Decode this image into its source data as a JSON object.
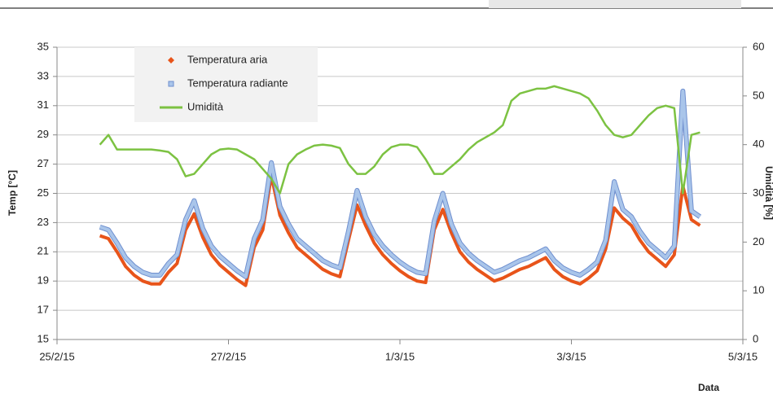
{
  "chart_data": {
    "type": "line",
    "x_label": "Data",
    "y_label": "Temp [°C]",
    "y2_label": "Umidità [%]",
    "x": [
      42060.5,
      42060.6,
      42060.7,
      42060.8,
      42060.9,
      42061.0,
      42061.1,
      42061.2,
      42061.3,
      42061.4,
      42061.5,
      42061.6,
      42061.7,
      42061.8,
      42061.9,
      42062.0,
      42062.1,
      42062.2,
      42062.3,
      42062.4,
      42062.5,
      42062.6,
      42062.7,
      42062.8,
      42062.9,
      42063.0,
      42063.1,
      42063.2,
      42063.3,
      42063.4,
      42063.5,
      42063.6,
      42063.7,
      42063.8,
      42063.9,
      42064.0,
      42064.1,
      42064.2,
      42064.3,
      42064.4,
      42064.5,
      42064.6,
      42064.7,
      42064.8,
      42064.9,
      42065.0,
      42065.1,
      42065.2,
      42065.3,
      42065.4,
      42065.5,
      42065.6,
      42065.7,
      42065.8,
      42065.9,
      42066.0,
      42066.1,
      42066.2,
      42066.3,
      42066.4,
      42066.5,
      42066.6,
      42066.7,
      42066.8,
      42066.9,
      42067.0,
      42067.1,
      42067.2,
      42067.3,
      42067.4,
      42067.5
    ],
    "series": [
      {
        "name": "Temperatura aria",
        "color": "#e8541a",
        "marker": "diamond",
        "values": [
          22.1,
          21.9,
          21.0,
          20.0,
          19.4,
          19.0,
          18.8,
          18.8,
          19.6,
          20.2,
          22.5,
          23.6,
          22.0,
          20.8,
          20.1,
          19.6,
          19.1,
          18.7,
          21.3,
          22.5,
          26.2,
          23.5,
          22.3,
          21.3,
          20.8,
          20.3,
          19.8,
          19.5,
          19.3,
          21.8,
          24.2,
          22.8,
          21.6,
          20.8,
          20.2,
          19.7,
          19.3,
          19.0,
          18.9,
          22.5,
          23.9,
          22.3,
          21.0,
          20.3,
          19.8,
          19.4,
          19.0,
          19.2,
          19.5,
          19.8,
          20.0,
          20.3,
          20.6,
          19.8,
          19.3,
          19.0,
          18.8,
          19.2,
          19.7,
          21.2,
          24.0,
          23.3,
          22.8,
          21.8,
          21.0,
          20.5,
          20.0,
          20.8,
          25.5,
          23.2,
          22.8
        ]
      },
      {
        "name": "Temperatura radiante",
        "color": "#a9c5ea",
        "marker": "square",
        "values": [
          22.7,
          22.5,
          21.6,
          20.6,
          20.0,
          19.6,
          19.4,
          19.4,
          20.2,
          20.8,
          23.2,
          24.5,
          22.6,
          21.4,
          20.7,
          20.2,
          19.7,
          19.3,
          21.9,
          23.2,
          27.1,
          24.1,
          22.9,
          21.9,
          21.4,
          20.9,
          20.4,
          20.1,
          19.9,
          22.4,
          25.2,
          23.4,
          22.2,
          21.4,
          20.8,
          20.3,
          19.9,
          19.6,
          19.5,
          23.1,
          25.0,
          22.9,
          21.6,
          20.9,
          20.4,
          20.0,
          19.6,
          19.8,
          20.1,
          20.4,
          20.6,
          20.9,
          21.2,
          20.4,
          19.9,
          19.6,
          19.4,
          19.8,
          20.3,
          21.8,
          25.8,
          23.9,
          23.4,
          22.4,
          21.6,
          21.1,
          20.6,
          21.4,
          32.0,
          23.8,
          23.4
        ]
      },
      {
        "name": "Umidità",
        "color": "#7cc242",
        "axis": "y2",
        "values": [
          40,
          42,
          39,
          39,
          39,
          39,
          39,
          38.8,
          38.5,
          37,
          33.5,
          34,
          36,
          38,
          39,
          39.2,
          39,
          38,
          37,
          35,
          33,
          30,
          36,
          38,
          39,
          39.8,
          40,
          39.8,
          39.3,
          36,
          34,
          34,
          35.5,
          38,
          39.5,
          40,
          40,
          39.5,
          37,
          34,
          34,
          35.5,
          37,
          39,
          40.5,
          41.5,
          42.5,
          44,
          49,
          50.5,
          51,
          51.5,
          51.5,
          52,
          51.5,
          51,
          50.5,
          49.5,
          47,
          44,
          42,
          41.5,
          42,
          44,
          46,
          47.5,
          48,
          47.5,
          30,
          42,
          42.5
        ]
      }
    ],
    "xlim": [
      42060,
      42068
    ],
    "xticks": [
      {
        "value": 42060,
        "label": "25/2/15"
      },
      {
        "value": 42062,
        "label": "27/2/15"
      },
      {
        "value": 42064,
        "label": "1/3/15"
      },
      {
        "value": 42066,
        "label": "3/3/15"
      },
      {
        "value": 42068,
        "label": "5/3/15"
      }
    ],
    "ylim": [
      15,
      35
    ],
    "yticks": [
      15,
      17,
      19,
      21,
      23,
      25,
      27,
      29,
      31,
      33,
      35
    ],
    "y2lim": [
      0,
      60
    ],
    "y2ticks": [
      0,
      10,
      20,
      30,
      40,
      50,
      60
    ],
    "grid": true,
    "legend": "top-left"
  }
}
